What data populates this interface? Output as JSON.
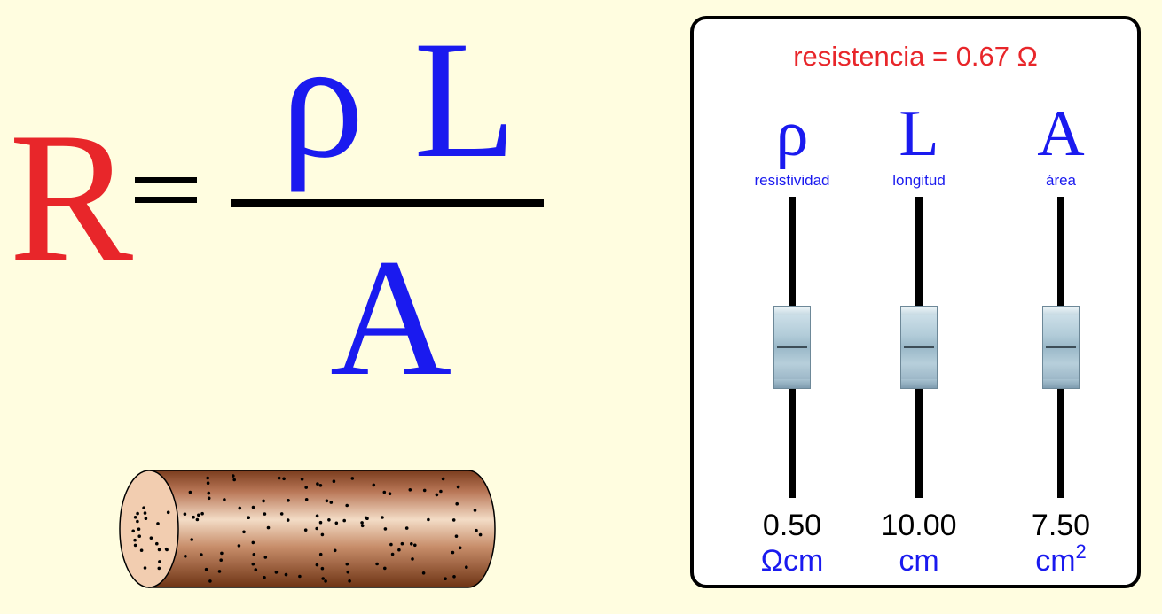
{
  "formula": {
    "lhs": "R",
    "eq": "=",
    "numerator": "ρ L",
    "denominator": "A"
  },
  "panel": {
    "resistance_label": "resistencia = 0.67 Ω",
    "sliders": [
      {
        "symbol": "ρ",
        "label": "resistividad",
        "value": "0.50",
        "unit": "Ωcm",
        "unit_sup": "",
        "position": 0.5
      },
      {
        "symbol": "L",
        "label": "longitud",
        "value": "10.00",
        "unit": "cm",
        "unit_sup": "",
        "position": 0.5
      },
      {
        "symbol": "A",
        "label": "área",
        "value": "7.50",
        "unit": "cm",
        "unit_sup": "2",
        "position": 0.5
      }
    ]
  },
  "colors": {
    "background": "#fffde0",
    "red": "#e8262a",
    "blue": "#1a1aef",
    "wire_light": "#f2d2b8",
    "wire_dark": "#7a3d1f"
  },
  "icons": {
    "wire": "copper-wire-cylinder-icon"
  }
}
